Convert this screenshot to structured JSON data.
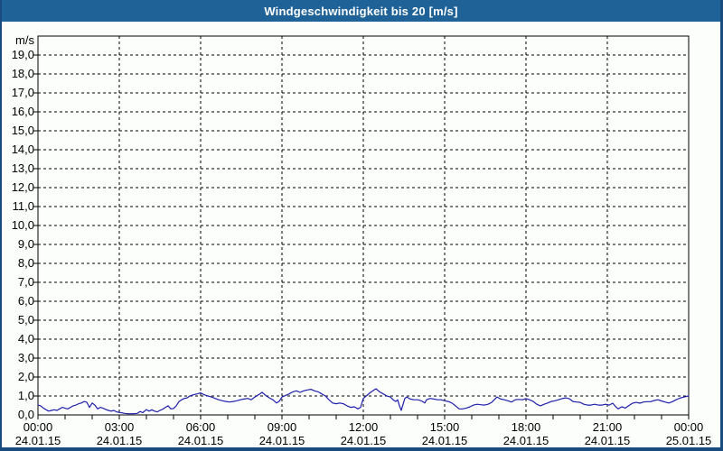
{
  "window": {
    "title": "Windgeschwindigkeit bis 20 [m/s]"
  },
  "colors": {
    "titlebar_bg": "#1f6297",
    "title_text": "#ffffff",
    "window_border": "#1a4b7e",
    "background": "#fcfefb",
    "plot_border": "#000000",
    "grid": "#000000",
    "line": "#1e1eac",
    "label_text": "#000000"
  },
  "chart_data": {
    "type": "line",
    "title": "Windgeschwindigkeit bis 20 [m/s]",
    "ylabel_unit": "m/s",
    "ylim": [
      0,
      20
    ],
    "ytick_step": 1,
    "ytick_labels": [
      "0,0",
      "1,0",
      "2,0",
      "3,0",
      "4,0",
      "5,0",
      "6,0",
      "7,0",
      "8,0",
      "9,0",
      "10,0",
      "11,0",
      "12,0",
      "13,0",
      "14,0",
      "15,0",
      "16,0",
      "17,0",
      "18,0",
      "19,0"
    ],
    "xlim_minutes": [
      0,
      1440
    ],
    "x_minor_tick_minutes": 60,
    "x_major_tick_minutes": 180,
    "grid": "dashed",
    "xtick_labels": [
      {
        "time": "00:00",
        "date": "24.01.15"
      },
      {
        "time": "03:00",
        "date": "24.01.15"
      },
      {
        "time": "06:00",
        "date": "24.01.15"
      },
      {
        "time": "09:00",
        "date": "24.01.15"
      },
      {
        "time": "12:00",
        "date": "24.01.15"
      },
      {
        "time": "15:00",
        "date": "24.01.15"
      },
      {
        "time": "18:00",
        "date": "24.01.15"
      },
      {
        "time": "21:00",
        "date": "24.01.15"
      },
      {
        "time": "00:00",
        "date": "25.01.15"
      }
    ],
    "series": [
      {
        "name": "Windgeschwindigkeit",
        "color": "#1e1eac",
        "points": [
          [
            0,
            0.52
          ],
          [
            6,
            0.48
          ],
          [
            12,
            0.36
          ],
          [
            18,
            0.27
          ],
          [
            24,
            0.2
          ],
          [
            30,
            0.24
          ],
          [
            36,
            0.27
          ],
          [
            42,
            0.24
          ],
          [
            48,
            0.32
          ],
          [
            54,
            0.4
          ],
          [
            60,
            0.35
          ],
          [
            66,
            0.32
          ],
          [
            72,
            0.4
          ],
          [
            78,
            0.48
          ],
          [
            84,
            0.52
          ],
          [
            90,
            0.59
          ],
          [
            96,
            0.63
          ],
          [
            102,
            0.71
          ],
          [
            108,
            0.67
          ],
          [
            114,
            0.4
          ],
          [
            120,
            0.63
          ],
          [
            126,
            0.52
          ],
          [
            132,
            0.32
          ],
          [
            138,
            0.4
          ],
          [
            144,
            0.35
          ],
          [
            150,
            0.29
          ],
          [
            156,
            0.24
          ],
          [
            162,
            0.2
          ],
          [
            168,
            0.24
          ],
          [
            174,
            0.16
          ],
          [
            180,
            0.13
          ],
          [
            186,
            0.11
          ],
          [
            192,
            0.08
          ],
          [
            200,
            0.06
          ],
          [
            210,
            0.06
          ],
          [
            220,
            0.08
          ],
          [
            226,
            0.18
          ],
          [
            232,
            0.12
          ],
          [
            240,
            0.28
          ],
          [
            246,
            0.2
          ],
          [
            252,
            0.27
          ],
          [
            258,
            0.2
          ],
          [
            264,
            0.16
          ],
          [
            270,
            0.24
          ],
          [
            276,
            0.3
          ],
          [
            282,
            0.4
          ],
          [
            288,
            0.48
          ],
          [
            294,
            0.32
          ],
          [
            300,
            0.34
          ],
          [
            306,
            0.48
          ],
          [
            312,
            0.7
          ],
          [
            318,
            0.8
          ],
          [
            324,
            0.87
          ],
          [
            330,
            0.9
          ],
          [
            336,
            1.0
          ],
          [
            344,
            1.06
          ],
          [
            352,
            1.11
          ],
          [
            360,
            1.16
          ],
          [
            368,
            1.06
          ],
          [
            376,
            1.0
          ],
          [
            384,
            0.95
          ],
          [
            392,
            0.87
          ],
          [
            400,
            0.8
          ],
          [
            408,
            0.75
          ],
          [
            416,
            0.71
          ],
          [
            424,
            0.68
          ],
          [
            432,
            0.71
          ],
          [
            440,
            0.75
          ],
          [
            448,
            0.8
          ],
          [
            456,
            0.84
          ],
          [
            464,
            0.87
          ],
          [
            472,
            0.8
          ],
          [
            480,
            0.95
          ],
          [
            488,
            1.06
          ],
          [
            496,
            1.19
          ],
          [
            504,
            1.03
          ],
          [
            512,
            0.9
          ],
          [
            520,
            0.8
          ],
          [
            528,
            0.63
          ],
          [
            534,
            0.72
          ],
          [
            540,
            0.95
          ],
          [
            548,
            1.03
          ],
          [
            556,
            1.11
          ],
          [
            564,
            1.22
          ],
          [
            572,
            1.27
          ],
          [
            580,
            1.19
          ],
          [
            588,
            1.27
          ],
          [
            596,
            1.32
          ],
          [
            604,
            1.35
          ],
          [
            612,
            1.27
          ],
          [
            620,
            1.22
          ],
          [
            628,
            1.11
          ],
          [
            636,
            1.0
          ],
          [
            644,
            0.8
          ],
          [
            652,
            0.63
          ],
          [
            660,
            0.59
          ],
          [
            668,
            0.63
          ],
          [
            676,
            0.59
          ],
          [
            684,
            0.48
          ],
          [
            692,
            0.4
          ],
          [
            700,
            0.43
          ],
          [
            708,
            0.32
          ],
          [
            714,
            0.4
          ],
          [
            720,
            0.87
          ],
          [
            728,
            1.03
          ],
          [
            736,
            1.19
          ],
          [
            744,
            1.32
          ],
          [
            748,
            1.38
          ],
          [
            756,
            1.22
          ],
          [
            764,
            1.11
          ],
          [
            772,
            1.0
          ],
          [
            780,
            0.95
          ],
          [
            786,
            0.8
          ],
          [
            792,
            0.71
          ],
          [
            796,
            0.8
          ],
          [
            800,
            0.48
          ],
          [
            804,
            0.24
          ],
          [
            808,
            0.56
          ],
          [
            812,
            0.87
          ],
          [
            816,
            0.95
          ],
          [
            824,
            0.84
          ],
          [
            832,
            0.8
          ],
          [
            840,
            0.8
          ],
          [
            848,
            0.75
          ],
          [
            856,
            0.63
          ],
          [
            860,
            0.8
          ],
          [
            868,
            0.87
          ],
          [
            876,
            0.84
          ],
          [
            884,
            0.8
          ],
          [
            892,
            0.8
          ],
          [
            900,
            0.75
          ],
          [
            908,
            0.71
          ],
          [
            916,
            0.63
          ],
          [
            924,
            0.48
          ],
          [
            932,
            0.32
          ],
          [
            940,
            0.32
          ],
          [
            948,
            0.36
          ],
          [
            956,
            0.43
          ],
          [
            964,
            0.52
          ],
          [
            972,
            0.56
          ],
          [
            980,
            0.54
          ],
          [
            988,
            0.52
          ],
          [
            996,
            0.56
          ],
          [
            1004,
            0.66
          ],
          [
            1012,
            0.85
          ],
          [
            1016,
            0.95
          ],
          [
            1024,
            0.84
          ],
          [
            1032,
            0.8
          ],
          [
            1040,
            0.75
          ],
          [
            1048,
            0.68
          ],
          [
            1056,
            0.8
          ],
          [
            1064,
            0.82
          ],
          [
            1072,
            0.8
          ],
          [
            1080,
            0.86
          ],
          [
            1088,
            0.8
          ],
          [
            1096,
            0.71
          ],
          [
            1104,
            0.56
          ],
          [
            1112,
            0.48
          ],
          [
            1120,
            0.56
          ],
          [
            1128,
            0.63
          ],
          [
            1136,
            0.71
          ],
          [
            1144,
            0.75
          ],
          [
            1152,
            0.8
          ],
          [
            1160,
            0.86
          ],
          [
            1168,
            0.9
          ],
          [
            1176,
            0.85
          ],
          [
            1184,
            0.71
          ],
          [
            1192,
            0.68
          ],
          [
            1200,
            0.66
          ],
          [
            1208,
            0.56
          ],
          [
            1216,
            0.52
          ],
          [
            1224,
            0.52
          ],
          [
            1232,
            0.56
          ],
          [
            1240,
            0.52
          ],
          [
            1248,
            0.52
          ],
          [
            1256,
            0.56
          ],
          [
            1264,
            0.52
          ],
          [
            1272,
            0.62
          ],
          [
            1278,
            0.45
          ],
          [
            1284,
            0.32
          ],
          [
            1292,
            0.43
          ],
          [
            1300,
            0.36
          ],
          [
            1308,
            0.5
          ],
          [
            1316,
            0.62
          ],
          [
            1324,
            0.66
          ],
          [
            1332,
            0.62
          ],
          [
            1340,
            0.68
          ],
          [
            1348,
            0.7
          ],
          [
            1356,
            0.7
          ],
          [
            1364,
            0.76
          ],
          [
            1372,
            0.8
          ],
          [
            1380,
            0.74
          ],
          [
            1388,
            0.68
          ],
          [
            1396,
            0.63
          ],
          [
            1404,
            0.7
          ],
          [
            1412,
            0.8
          ],
          [
            1420,
            0.88
          ],
          [
            1428,
            0.94
          ],
          [
            1436,
            0.98
          ],
          [
            1440,
            1.0
          ]
        ]
      }
    ]
  }
}
